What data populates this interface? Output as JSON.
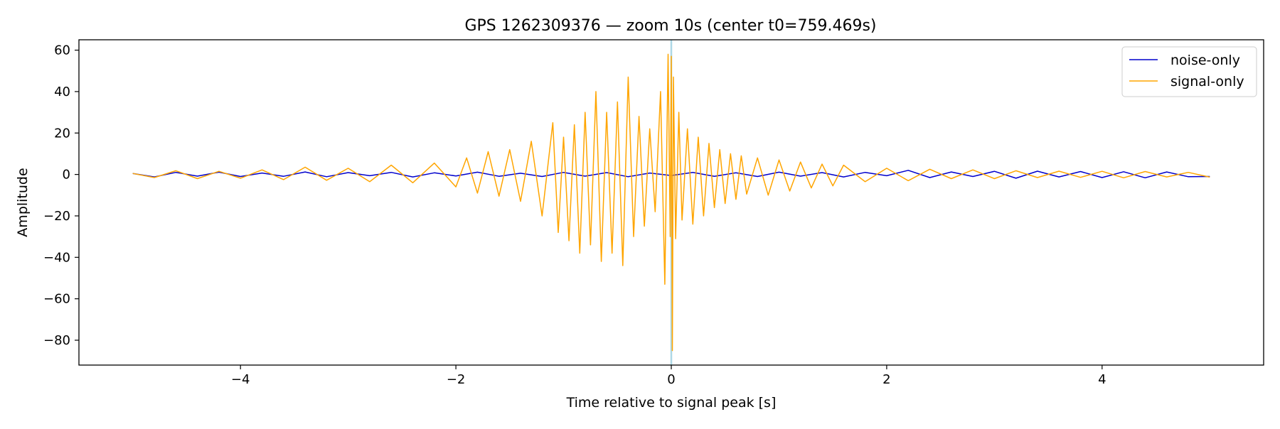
{
  "chart_data": {
    "type": "line",
    "title": "GPS 1262309376 — zoom 10s (center t0=759.469s)",
    "xlabel": "Time relative to signal peak [s]",
    "ylabel": "Amplitude",
    "xlim": [
      -5.5,
      5.5
    ],
    "ylim": [
      -92,
      65
    ],
    "x_ticks": [
      -4,
      -2,
      0,
      2,
      4
    ],
    "x_tick_labels": [
      "−4",
      "−2",
      "0",
      "2",
      "4"
    ],
    "y_ticks": [
      -80,
      -60,
      -40,
      -20,
      0,
      20,
      40,
      60
    ],
    "y_tick_labels": [
      "−80",
      "−60",
      "−40",
      "−20",
      "0",
      "20",
      "40",
      "60"
    ],
    "grid": false,
    "legend_position": "top-right",
    "marker_line": {
      "x": 0,
      "color": "#add8e6"
    },
    "series": [
      {
        "name": "noise-only",
        "color": "#0000cc",
        "x": [
          -5.0,
          -4.8,
          -4.6,
          -4.4,
          -4.2,
          -4.0,
          -3.8,
          -3.6,
          -3.4,
          -3.2,
          -3.0,
          -2.8,
          -2.6,
          -2.4,
          -2.2,
          -2.0,
          -1.8,
          -1.6,
          -1.4,
          -1.2,
          -1.0,
          -0.8,
          -0.6,
          -0.4,
          -0.2,
          0.0,
          0.2,
          0.4,
          0.6,
          0.8,
          1.0,
          1.2,
          1.4,
          1.6,
          1.8,
          2.0,
          2.2,
          2.4,
          2.6,
          2.8,
          3.0,
          3.2,
          3.4,
          3.6,
          3.8,
          4.0,
          4.2,
          4.4,
          4.6,
          4.8,
          5.0
        ],
        "y": [
          0.5,
          -1.2,
          1.0,
          -0.8,
          1.1,
          -1.0,
          0.7,
          -0.9,
          1.2,
          -1.1,
          0.9,
          -0.6,
          1.0,
          -1.2,
          0.8,
          -0.7,
          1.1,
          -0.9,
          0.6,
          -1.0,
          1.0,
          -0.8,
          0.9,
          -1.1,
          0.7,
          -0.5,
          1.0,
          -0.9,
          0.8,
          -1.0,
          1.1,
          -0.8,
          0.9,
          -1.2,
          1.0,
          -0.6,
          2.0,
          -1.5,
          1.2,
          -1.0,
          1.5,
          -1.8,
          1.6,
          -1.2,
          1.4,
          -1.5,
          1.3,
          -1.6,
          1.2,
          -1.1,
          -1.0
        ]
      },
      {
        "name": "signal-only",
        "color": "#ffa500",
        "x": [
          -5.0,
          -4.8,
          -4.6,
          -4.4,
          -4.2,
          -4.0,
          -3.8,
          -3.6,
          -3.4,
          -3.2,
          -3.0,
          -2.8,
          -2.6,
          -2.4,
          -2.2,
          -2.0,
          -1.9,
          -1.8,
          -1.7,
          -1.6,
          -1.5,
          -1.4,
          -1.3,
          -1.2,
          -1.1,
          -1.05,
          -1.0,
          -0.95,
          -0.9,
          -0.85,
          -0.8,
          -0.75,
          -0.7,
          -0.65,
          -0.6,
          -0.55,
          -0.5,
          -0.45,
          -0.4,
          -0.35,
          -0.3,
          -0.25,
          -0.2,
          -0.15,
          -0.1,
          -0.06,
          -0.03,
          -0.01,
          0.0,
          0.01,
          0.02,
          0.04,
          0.07,
          0.1,
          0.15,
          0.2,
          0.25,
          0.3,
          0.35,
          0.4,
          0.45,
          0.5,
          0.55,
          0.6,
          0.65,
          0.7,
          0.8,
          0.9,
          1.0,
          1.1,
          1.2,
          1.3,
          1.4,
          1.5,
          1.6,
          1.8,
          2.0,
          2.2,
          2.4,
          2.6,
          2.8,
          3.0,
          3.2,
          3.4,
          3.6,
          3.8,
          4.0,
          4.2,
          4.4,
          4.6,
          4.8,
          5.0
        ],
        "y": [
          0.5,
          -1.5,
          1.8,
          -2.0,
          1.5,
          -1.8,
          2.2,
          -2.5,
          3.5,
          -2.8,
          3.0,
          -3.5,
          4.5,
          -4.0,
          5.5,
          -6.0,
          8.0,
          -9.0,
          11.0,
          -10.5,
          12.0,
          -13.0,
          16.0,
          -20.0,
          25.0,
          -28.0,
          18.0,
          -32.0,
          24.0,
          -38.0,
          30.0,
          -34.0,
          40.0,
          -42.0,
          30.0,
          -38.0,
          35.0,
          -44.0,
          47.0,
          -30.0,
          28.0,
          -25.0,
          22.0,
          -18.0,
          40.0,
          -53.0,
          58.0,
          -30.0,
          57.0,
          -85.0,
          47.0,
          -31.0,
          30.0,
          -22.0,
          22.0,
          -24.0,
          18.0,
          -20.0,
          15.0,
          -16.0,
          12.0,
          -14.0,
          10.0,
          -12.0,
          9.0,
          -9.5,
          8.0,
          -10.0,
          7.0,
          -8.0,
          6.0,
          -6.5,
          5.0,
          -5.5,
          4.5,
          -3.5,
          3.0,
          -3.0,
          2.5,
          -2.0,
          2.2,
          -2.0,
          1.8,
          -1.5,
          1.6,
          -1.4,
          1.5,
          -1.6,
          1.4,
          -1.2,
          1.0,
          -1.3
        ]
      }
    ]
  }
}
